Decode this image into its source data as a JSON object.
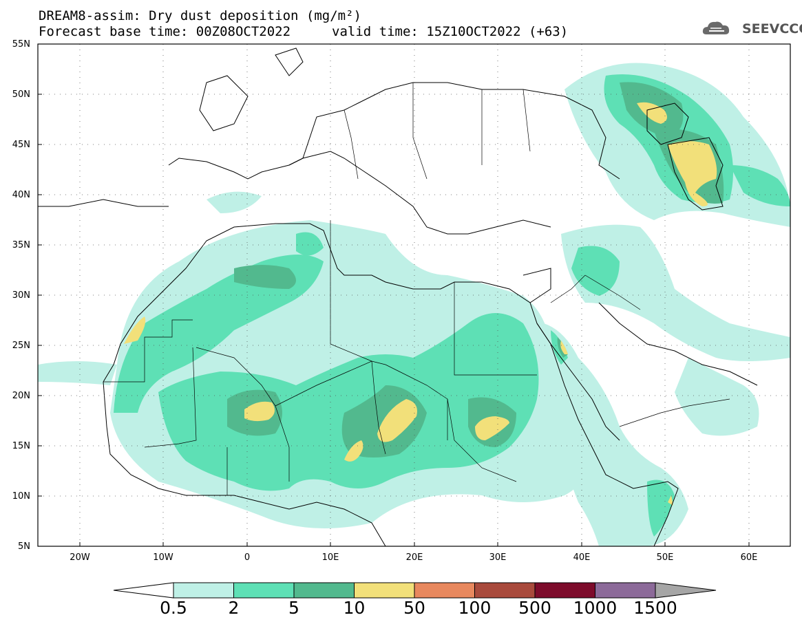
{
  "title_line1": "DREAM8-assim: Dry dust deposition (mg/m²)",
  "title_line2": "Forecast base time: 00Z08OCT2022",
  "valid_time": "valid time: 15Z10OCT2022 (+63)",
  "logo_text": "SEEVCCC",
  "map": {
    "lon_range": [
      -25,
      65
    ],
    "lat_range": [
      5,
      55
    ],
    "lat_ticks": [
      "55N",
      "50N",
      "45N",
      "40N",
      "35N",
      "30N",
      "25N",
      "20N",
      "15N",
      "10N",
      "5N"
    ],
    "lon_ticks": [
      "20W",
      "10W",
      "0",
      "10E",
      "20E",
      "30E",
      "40E",
      "50E",
      "60E"
    ],
    "grid": true
  },
  "legend": {
    "levels": [
      "0.5",
      "2",
      "5",
      "10",
      "50",
      "100",
      "500",
      "1000",
      "1500"
    ],
    "colors": [
      "#bff0e6",
      "#5ee0b5",
      "#52b98e",
      "#f2e07a",
      "#e8885e",
      "#a94a3c",
      "#7d0b2b",
      "#8c6a99",
      "#a6a6a6"
    ],
    "under_color": "#ffffff",
    "over_color": "#a6a6a6"
  }
}
